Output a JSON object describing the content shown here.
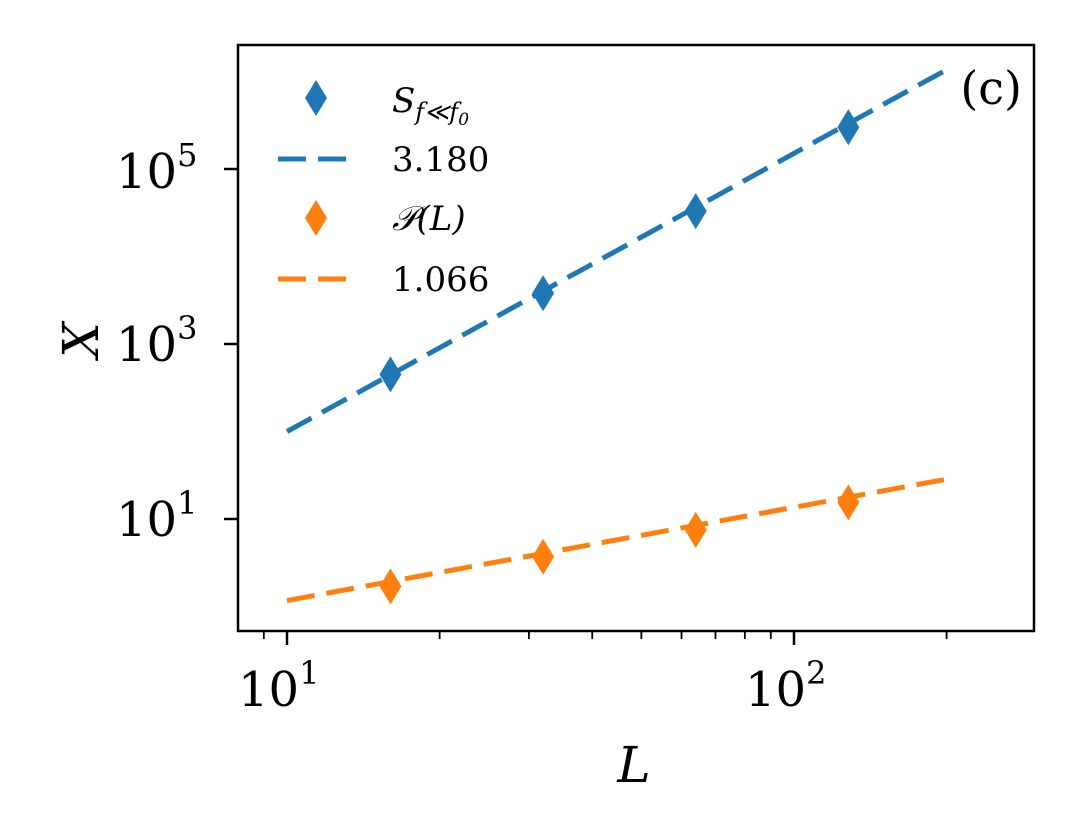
{
  "chart_data": {
    "type": "scatter",
    "panel_label": "(c)",
    "xlabel": "L",
    "ylabel": "X",
    "xscale": "log",
    "yscale": "log",
    "xlim": [
      8,
      300
    ],
    "ylim": [
      0.6,
      2500000
    ],
    "x_ticks": [
      {
        "base": "10",
        "exp": "1",
        "value": 10
      },
      {
        "base": "10",
        "exp": "2",
        "value": 100
      }
    ],
    "y_ticks": [
      {
        "base": "10",
        "exp": "1",
        "value": 10
      },
      {
        "base": "10",
        "exp": "3",
        "value": 1000
      },
      {
        "base": "10",
        "exp": "5",
        "value": 100000
      }
    ],
    "legend_position": "top-left",
    "series": [
      {
        "name": "S_{f≪f0}",
        "legend_main": "S",
        "legend_sub": "f≪f",
        "legend_subsub": "0",
        "kind": "markers",
        "marker": "thin_diamond",
        "color": "#1f77b4",
        "x": [
          16,
          32,
          64,
          128
        ],
        "y": [
          450,
          3800,
          33000,
          300000
        ]
      },
      {
        "name": "3.180",
        "legend_label": "3.180",
        "kind": "dashed-fit",
        "color": "#1f77b4",
        "exponent": 3.18,
        "x": [
          10,
          200
        ],
        "y": [
          100,
          1365000
        ]
      },
      {
        "name": "P(L)",
        "legend_label": "𝒫(L)",
        "kind": "markers",
        "marker": "thin_diamond",
        "color": "#ff7f0e",
        "x": [
          16,
          32,
          64,
          128
        ],
        "y": [
          1.7,
          3.7,
          7.5,
          15.5
        ]
      },
      {
        "name": "1.066",
        "legend_label": "1.066",
        "kind": "dashed-fit",
        "color": "#ff7f0e",
        "exponent": 1.066,
        "x": [
          10,
          200
        ],
        "y": [
          1.17,
          28.5
        ]
      }
    ]
  }
}
